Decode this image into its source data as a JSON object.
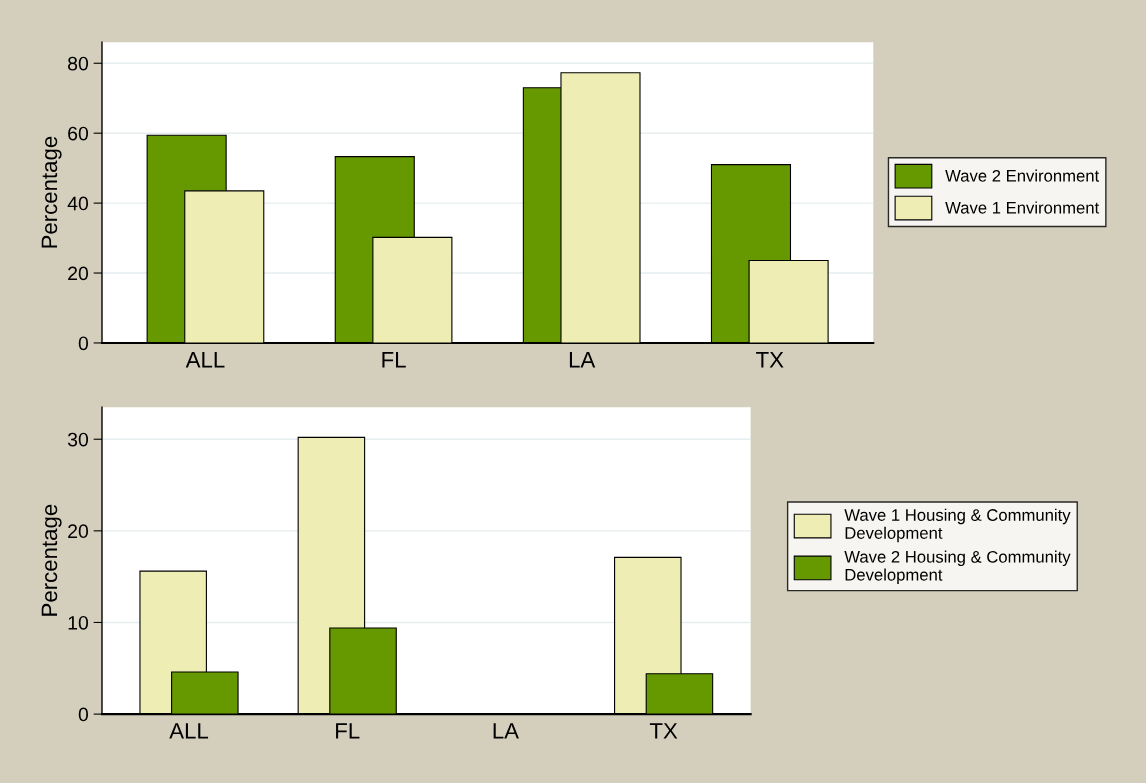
{
  "chart_data": [
    {
      "type": "bar",
      "ylabel": "Percentage",
      "categories": [
        "ALL",
        "FL",
        "LA",
        "TX"
      ],
      "series": [
        {
          "name": "Wave 2 Environment",
          "color": "#669900",
          "values": [
            59.4,
            53.3,
            73.0,
            51.0
          ]
        },
        {
          "name": "Wave 1 Environment",
          "color": "#eeeeb4",
          "values": [
            43.5,
            30.2,
            77.3,
            23.6
          ]
        }
      ],
      "ylim": [
        0,
        86
      ],
      "yticks": [
        0,
        20,
        40,
        60,
        80
      ],
      "grid": "y",
      "legend": "right"
    },
    {
      "type": "bar",
      "ylabel": "Percentage",
      "categories": [
        "ALL",
        "FL",
        "LA",
        "TX"
      ],
      "series": [
        {
          "name": "Wave 1 Housing & Community Development",
          "color": "#eeeeb4",
          "values": [
            15.6,
            30.2,
            null,
            17.1
          ]
        },
        {
          "name": "Wave 2 Housing & Community Development",
          "color": "#669900",
          "values": [
            4.6,
            9.4,
            null,
            4.4
          ]
        }
      ],
      "ylim": [
        0,
        33.5
      ],
      "yticks": [
        0,
        10,
        20,
        30
      ],
      "grid": "y",
      "legend": "right"
    }
  ]
}
